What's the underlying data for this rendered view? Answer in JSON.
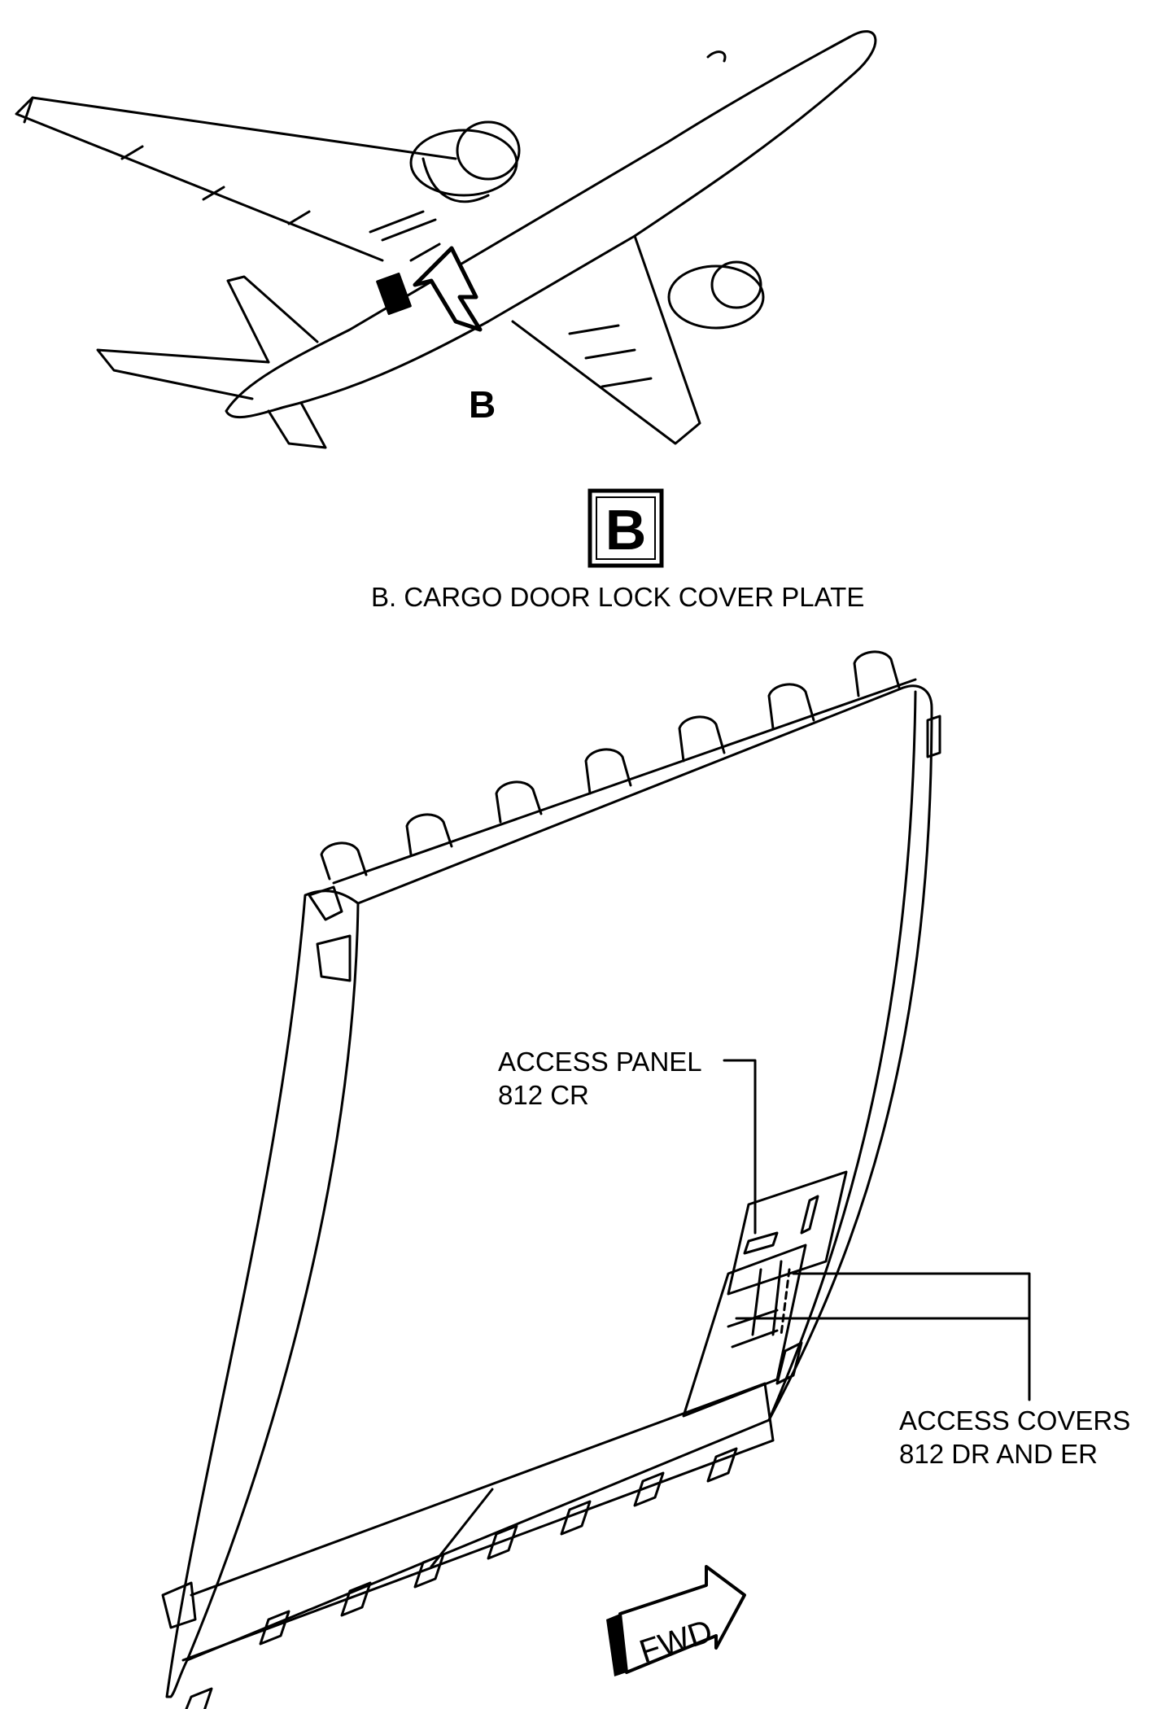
{
  "callout_letter": "B",
  "view_letter": "B",
  "view_title": "B.  CARGO DOOR LOCK COVER PLATE",
  "labels": {
    "access_panel_line1": "ACCESS PANEL",
    "access_panel_line2": "812 CR",
    "access_covers_line1": "ACCESS COVERS",
    "access_covers_line2": "812 DR AND ER"
  },
  "fwd_label": "FWD"
}
